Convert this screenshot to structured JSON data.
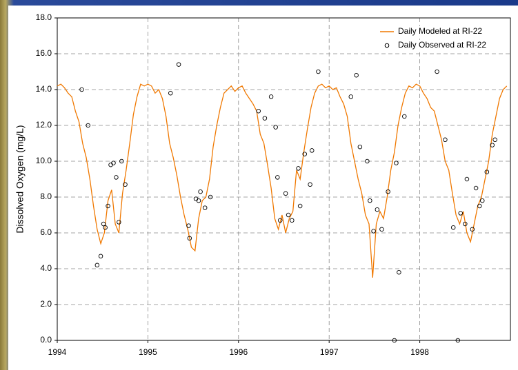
{
  "chart_data": {
    "type": "line-scatter",
    "y_label": "Dissolved Oxygen (mg/L)",
    "xlim": [
      1994,
      1999
    ],
    "xticks": [
      1994,
      1995,
      1996,
      1997,
      1998
    ],
    "ylim": [
      0,
      18
    ],
    "yticks": [
      {
        "value": 0,
        "label": "0.0"
      },
      {
        "value": 2,
        "label": "2.0"
      },
      {
        "value": 4,
        "label": "4.0"
      },
      {
        "value": 6,
        "label": "6.0"
      },
      {
        "value": 8,
        "label": "8.0"
      },
      {
        "value": 10,
        "label": "10.0"
      },
      {
        "value": 12,
        "label": "12.0"
      },
      {
        "value": 14,
        "label": "14.0"
      },
      {
        "value": 16,
        "label": "16.0"
      },
      {
        "value": 18,
        "label": "18.0"
      }
    ],
    "grid": true,
    "legend": "upper right",
    "series": [
      {
        "name": "Daily Modeled at RI-22",
        "kind": "line",
        "color": "#f07800",
        "x": [
          1994,
          1994.04,
          1994.08,
          1994.12,
          1994.16,
          1994.2,
          1994.24,
          1994.28,
          1994.32,
          1994.36,
          1994.4,
          1994.44,
          1994.48,
          1994.52,
          1994.56,
          1994.6,
          1994.64,
          1994.68,
          1994.72,
          1994.76,
          1994.8,
          1994.84,
          1994.88,
          1994.92,
          1994.96,
          1995,
          1995.04,
          1995.08,
          1995.12,
          1995.16,
          1995.2,
          1995.24,
          1995.28,
          1995.32,
          1995.36,
          1995.4,
          1995.44,
          1995.48,
          1995.52,
          1995.56,
          1995.6,
          1995.64,
          1995.68,
          1995.72,
          1995.76,
          1995.8,
          1995.84,
          1995.88,
          1995.92,
          1995.96,
          1996,
          1996.04,
          1996.08,
          1996.12,
          1996.16,
          1996.2,
          1996.24,
          1996.28,
          1996.32,
          1996.36,
          1996.4,
          1996.44,
          1996.48,
          1996.52,
          1996.56,
          1996.6,
          1996.64,
          1996.68,
          1996.72,
          1996.76,
          1996.8,
          1996.84,
          1996.88,
          1996.92,
          1996.96,
          1997,
          1997.04,
          1997.08,
          1997.12,
          1997.16,
          1997.2,
          1997.24,
          1997.28,
          1997.32,
          1997.36,
          1997.4,
          1997.44,
          1997.48,
          1997.52,
          1997.56,
          1997.6,
          1997.64,
          1997.68,
          1997.72,
          1997.76,
          1997.8,
          1997.84,
          1997.88,
          1997.92,
          1997.96,
          1998,
          1998.04,
          1998.08,
          1998.12,
          1998.16,
          1998.2,
          1998.24,
          1998.28,
          1998.32,
          1998.36,
          1998.4,
          1998.44,
          1998.48,
          1998.52,
          1998.56,
          1998.6,
          1998.64,
          1998.68,
          1998.72,
          1998.76,
          1998.8,
          1998.84,
          1998.88,
          1998.92,
          1998.96
        ],
        "values": [
          14.2,
          14.3,
          14.1,
          13.8,
          13.6,
          12.8,
          12.2,
          11.0,
          10.2,
          9.0,
          7.5,
          6.2,
          5.4,
          6.0,
          7.8,
          8.4,
          6.5,
          6.0,
          8.2,
          9.5,
          11.0,
          12.6,
          13.6,
          14.3,
          14.2,
          14.3,
          14.2,
          13.8,
          14.0,
          13.5,
          12.5,
          11.0,
          10.2,
          9.2,
          8.0,
          7.0,
          6.2,
          5.2,
          5.0,
          6.8,
          7.8,
          8.0,
          9.0,
          10.8,
          12.0,
          13.0,
          13.8,
          14.0,
          14.2,
          13.9,
          14.1,
          14.2,
          13.8,
          13.5,
          13.2,
          12.8,
          11.5,
          11.0,
          9.8,
          8.5,
          6.8,
          6.2,
          7.0,
          6.0,
          6.8,
          7.2,
          9.5,
          9.0,
          10.5,
          11.8,
          13.0,
          13.8,
          14.2,
          14.3,
          14.1,
          14.2,
          14.0,
          14.1,
          13.6,
          13.2,
          12.5,
          11.0,
          10.0,
          9.0,
          8.2,
          7.0,
          6.5,
          3.5,
          6.5,
          7.2,
          6.8,
          8.0,
          9.5,
          10.5,
          12.0,
          13.0,
          13.8,
          14.2,
          14.1,
          14.3,
          14.2,
          13.8,
          13.5,
          13.0,
          12.8,
          12.0,
          11.2,
          10.0,
          9.5,
          8.2,
          7.0,
          6.5,
          7.2,
          6.0,
          5.5,
          6.5,
          7.5,
          8.0,
          9.0,
          10.0,
          11.5,
          12.5,
          13.5,
          14.0,
          14.2
        ]
      },
      {
        "name": "Daily Observed at RI-22",
        "kind": "scatter",
        "color": "#000000",
        "x": [
          1994.27,
          1994.34,
          1994.44,
          1994.48,
          1994.51,
          1994.53,
          1994.56,
          1994.59,
          1994.62,
          1994.65,
          1994.68,
          1994.71,
          1994.75,
          1995.25,
          1995.34,
          1995.45,
          1995.46,
          1995.53,
          1995.56,
          1995.58,
          1995.63,
          1995.69,
          1996.22,
          1996.29,
          1996.36,
          1996.41,
          1996.43,
          1996.46,
          1996.52,
          1996.55,
          1996.59,
          1996.66,
          1996.68,
          1996.73,
          1996.79,
          1996.81,
          1996.88,
          1997.24,
          1997.3,
          1997.34,
          1997.42,
          1997.45,
          1997.49,
          1997.53,
          1997.58,
          1997.65,
          1997.72,
          1997.74,
          1997.77,
          1997.83,
          1998.19,
          1998.28,
          1998.37,
          1998.42,
          1998.45,
          1998.5,
          1998.52,
          1998.58,
          1998.62,
          1998.66,
          1998.69,
          1998.74,
          1998.8,
          1998.83
        ],
        "values": [
          14.0,
          12.0,
          4.2,
          4.7,
          6.5,
          6.3,
          7.5,
          9.8,
          9.9,
          9.1,
          6.6,
          10.0,
          8.7,
          13.8,
          15.4,
          6.4,
          5.7,
          7.9,
          7.8,
          8.3,
          7.4,
          8.0,
          12.8,
          12.4,
          13.6,
          11.9,
          9.1,
          6.7,
          8.2,
          7.0,
          6.7,
          9.6,
          7.5,
          10.4,
          8.7,
          10.6,
          15.0,
          13.6,
          14.8,
          10.8,
          10.0,
          7.8,
          6.1,
          7.3,
          6.2,
          8.3,
          0.0,
          9.9,
          3.8,
          12.5,
          15.0,
          11.2,
          6.3,
          0.0,
          7.1,
          6.5,
          9.0,
          6.2,
          8.5,
          7.5,
          7.8,
          9.4,
          10.9,
          11.2
        ]
      }
    ]
  }
}
